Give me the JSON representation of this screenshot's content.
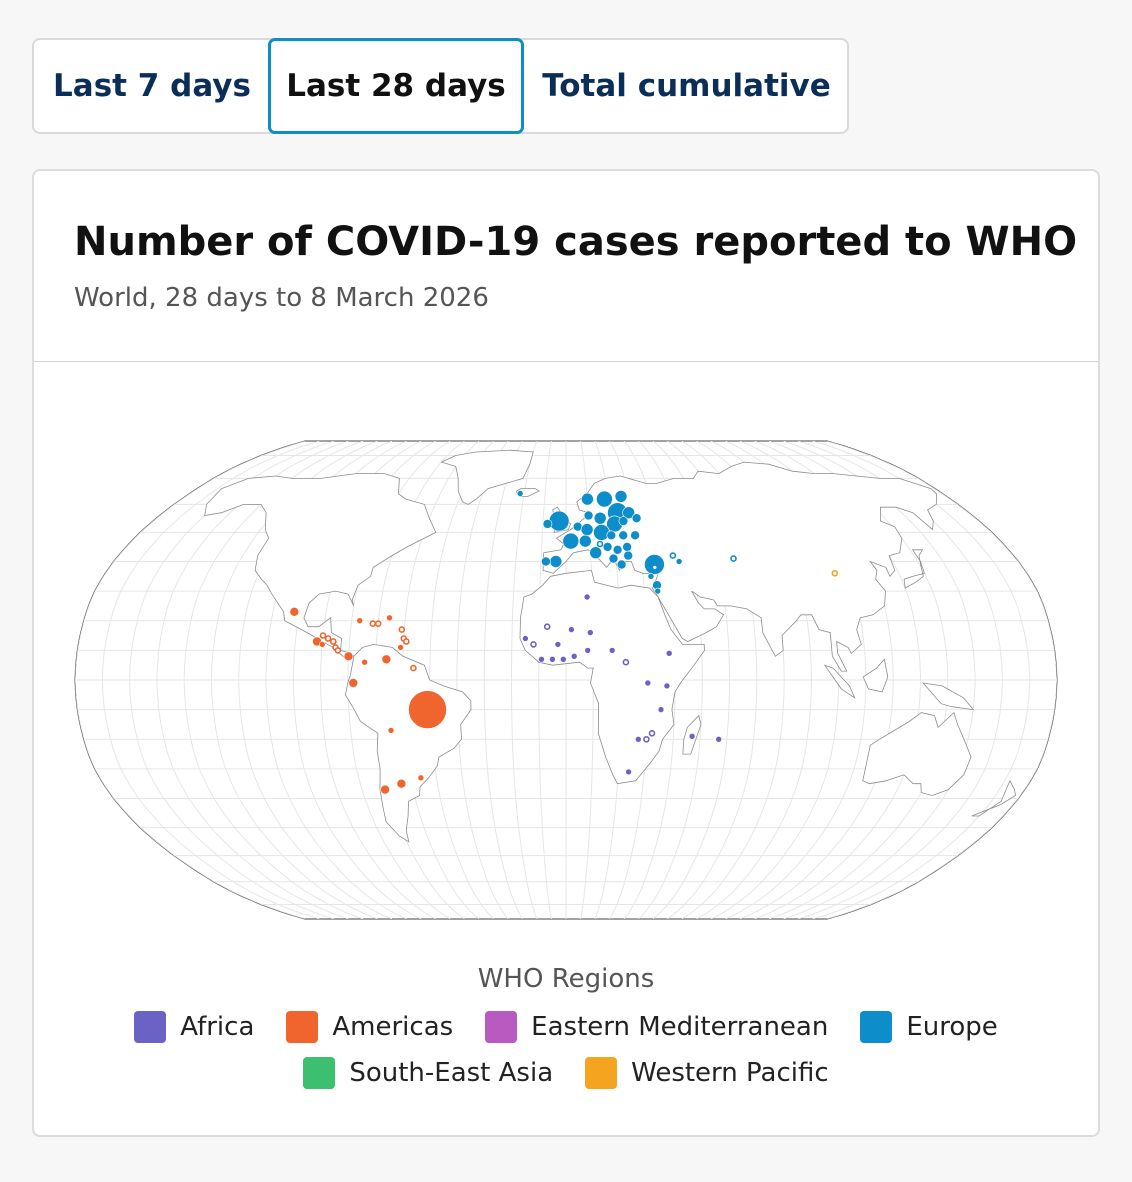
{
  "tabs": [
    {
      "label": "Last 7 days",
      "selected": false
    },
    {
      "label": "Last 28 days",
      "selected": true
    },
    {
      "label": "Total cumulative",
      "selected": false
    }
  ],
  "title": "Number of COVID-19 cases reported to WHO",
  "subtitle": "World, 28 days to 8 March 2026",
  "legend": {
    "title": "WHO Regions",
    "items": [
      {
        "label": "Africa",
        "color": "#6a62c4"
      },
      {
        "label": "Americas",
        "color": "#f0652d"
      },
      {
        "label": "Eastern Mediterranean",
        "color": "#b85bc0"
      },
      {
        "label": "Europe",
        "color": "#0d8dc9"
      },
      {
        "label": "South-East Asia",
        "color": "#3cbf6e"
      },
      {
        "label": "Western Pacific",
        "color": "#f4a41e"
      }
    ]
  },
  "map": {
    "projection": "robinson",
    "markers_note": "proportional circles per country; hollow = low/zero recent",
    "markers": [
      {
        "region": "Europe",
        "lon": -21.9,
        "lat": 64.1,
        "size": 1,
        "filled": true
      },
      {
        "region": "Europe",
        "lon": -3,
        "lat": 54,
        "size": 5,
        "filled": true
      },
      {
        "region": "Europe",
        "lon": 10,
        "lat": 62,
        "size": 3,
        "filled": true
      },
      {
        "region": "Europe",
        "lon": 18,
        "lat": 62,
        "size": 4,
        "filled": true
      },
      {
        "region": "Europe",
        "lon": 26,
        "lat": 63,
        "size": 3,
        "filled": true
      },
      {
        "region": "Europe",
        "lon": 23,
        "lat": 57,
        "size": 5,
        "filled": true
      },
      {
        "region": "Europe",
        "lon": 28,
        "lat": 57,
        "size": 3,
        "filled": true
      },
      {
        "region": "Europe",
        "lon": 10,
        "lat": 56,
        "size": 2,
        "filled": true
      },
      {
        "region": "Europe",
        "lon": 15,
        "lat": 55,
        "size": 3,
        "filled": true
      },
      {
        "region": "Europe",
        "lon": 21,
        "lat": 53,
        "size": 4,
        "filled": true
      },
      {
        "region": "Europe",
        "lon": 25,
        "lat": 54,
        "size": 2,
        "filled": true
      },
      {
        "region": "Europe",
        "lon": 31,
        "lat": 55,
        "size": 2,
        "filled": true
      },
      {
        "region": "Europe",
        "lon": -8,
        "lat": 53,
        "size": 2,
        "filled": true
      },
      {
        "region": "Europe",
        "lon": 5,
        "lat": 52,
        "size": 2,
        "filled": true
      },
      {
        "region": "Europe",
        "lon": 9,
        "lat": 51,
        "size": 3,
        "filled": true
      },
      {
        "region": "Europe",
        "lon": 15,
        "lat": 50,
        "size": 4,
        "filled": true
      },
      {
        "region": "Europe",
        "lon": 19,
        "lat": 49,
        "size": 2,
        "filled": true
      },
      {
        "region": "Europe",
        "lon": 24,
        "lat": 49,
        "size": 2,
        "filled": true
      },
      {
        "region": "Europe",
        "lon": 29,
        "lat": 49,
        "size": 2,
        "filled": true
      },
      {
        "region": "Europe",
        "lon": 2,
        "lat": 47,
        "size": 4,
        "filled": true
      },
      {
        "region": "Europe",
        "lon": 8,
        "lat": 47,
        "size": 3,
        "filled": true
      },
      {
        "region": "Europe",
        "lon": -4,
        "lat": 40,
        "size": 3,
        "filled": true
      },
      {
        "region": "Europe",
        "lon": -8,
        "lat": 40,
        "size": 2,
        "filled": true
      },
      {
        "region": "Europe",
        "lon": 12,
        "lat": 43,
        "size": 3,
        "filled": true
      },
      {
        "region": "Europe",
        "lon": 17,
        "lat": 45,
        "size": 2,
        "filled": true
      },
      {
        "region": "Europe",
        "lon": 21,
        "lat": 44,
        "size": 2,
        "filled": true
      },
      {
        "region": "Europe",
        "lon": 25,
        "lat": 45,
        "size": 2,
        "filled": true
      },
      {
        "region": "Europe",
        "lon": 14,
        "lat": 46,
        "size": 1,
        "filled": false
      },
      {
        "region": "Europe",
        "lon": 19,
        "lat": 41,
        "size": 2,
        "filled": true
      },
      {
        "region": "Europe",
        "lon": 22,
        "lat": 39,
        "size": 2,
        "filled": true
      },
      {
        "region": "Europe",
        "lon": 25,
        "lat": 42,
        "size": 2,
        "filled": true
      },
      {
        "region": "Europe",
        "lon": 35,
        "lat": 39,
        "size": 5,
        "filled": true
      },
      {
        "region": "Europe",
        "lon": 33,
        "lat": 35,
        "size": 1,
        "filled": true
      },
      {
        "region": "Europe",
        "lon": 43,
        "lat": 42,
        "size": 1,
        "filled": false
      },
      {
        "region": "Europe",
        "lon": 45,
        "lat": 40,
        "size": 1,
        "filled": true
      },
      {
        "region": "Europe",
        "lon": 67,
        "lat": 41,
        "size": 1,
        "filled": false
      },
      {
        "region": "Europe",
        "lon": 35,
        "lat": 38,
        "size": 1,
        "filled": false
      },
      {
        "region": "Europe",
        "lon": 35,
        "lat": 32,
        "size": 2,
        "filled": true
      },
      {
        "region": "Europe",
        "lon": 35,
        "lat": 30,
        "size": 1,
        "filled": true
      },
      {
        "region": "Western Pacific",
        "lon": 105,
        "lat": 36,
        "size": 1,
        "filled": false
      },
      {
        "region": "Americas",
        "lon": -102,
        "lat": 23,
        "size": 2,
        "filled": true
      },
      {
        "region": "Americas",
        "lon": -90,
        "lat": 15,
        "size": 1,
        "filled": false
      },
      {
        "region": "Americas",
        "lon": -88,
        "lat": 14,
        "size": 1,
        "filled": false
      },
      {
        "region": "Americas",
        "lon": -86,
        "lat": 13,
        "size": 1,
        "filled": false
      },
      {
        "region": "Americas",
        "lon": -85,
        "lat": 11,
        "size": 1,
        "filled": false
      },
      {
        "region": "Americas",
        "lon": -92,
        "lat": 13,
        "size": 2,
        "filled": true
      },
      {
        "region": "Americas",
        "lon": -90,
        "lat": 12,
        "size": 1,
        "filled": true
      },
      {
        "region": "Americas",
        "lon": -84,
        "lat": 10,
        "size": 1,
        "filled": false
      },
      {
        "region": "Americas",
        "lon": -80,
        "lat": 8,
        "size": 2,
        "filled": true
      },
      {
        "region": "Americas",
        "lon": -77,
        "lat": 20,
        "size": 1,
        "filled": true
      },
      {
        "region": "Americas",
        "lon": -72,
        "lat": 19,
        "size": 1,
        "filled": false
      },
      {
        "region": "Americas",
        "lon": -70,
        "lat": 19,
        "size": 1,
        "filled": false
      },
      {
        "region": "Americas",
        "lon": -66,
        "lat": 21,
        "size": 1,
        "filled": true
      },
      {
        "region": "Americas",
        "lon": -61,
        "lat": 17,
        "size": 1,
        "filled": false
      },
      {
        "region": "Americas",
        "lon": -60,
        "lat": 14,
        "size": 1,
        "filled": false
      },
      {
        "region": "Americas",
        "lon": -59,
        "lat": 13,
        "size": 1,
        "filled": false
      },
      {
        "region": "Americas",
        "lon": -61,
        "lat": 11,
        "size": 1,
        "filled": true
      },
      {
        "region": "Americas",
        "lon": -74,
        "lat": 6,
        "size": 1,
        "filled": true
      },
      {
        "region": "Americas",
        "lon": -66,
        "lat": 7,
        "size": 2,
        "filled": true
      },
      {
        "region": "Americas",
        "lon": -56,
        "lat": 4,
        "size": 1,
        "filled": false
      },
      {
        "region": "Americas",
        "lon": -78,
        "lat": -1,
        "size": 2,
        "filled": true
      },
      {
        "region": "Americas",
        "lon": -51,
        "lat": -10,
        "size": 6,
        "filled": true
      },
      {
        "region": "Americas",
        "lon": -65,
        "lat": -17,
        "size": 1,
        "filled": true
      },
      {
        "region": "Americas",
        "lon": -56,
        "lat": -33,
        "size": 1,
        "filled": true
      },
      {
        "region": "Americas",
        "lon": -64,
        "lat": -35,
        "size": 2,
        "filled": true
      },
      {
        "region": "Americas",
        "lon": -71,
        "lat": -37,
        "size": 2,
        "filled": true
      },
      {
        "region": "Africa",
        "lon": 8,
        "lat": 28,
        "size": 1,
        "filled": true
      },
      {
        "region": "Africa",
        "lon": -7,
        "lat": 18,
        "size": 1,
        "filled": false
      },
      {
        "region": "Africa",
        "lon": 2,
        "lat": 17,
        "size": 1,
        "filled": true
      },
      {
        "region": "Africa",
        "lon": 9,
        "lat": 16,
        "size": 1,
        "filled": true
      },
      {
        "region": "Africa",
        "lon": -15,
        "lat": 14,
        "size": 1,
        "filled": true
      },
      {
        "region": "Africa",
        "lon": -12,
        "lat": 12,
        "size": 1,
        "filled": false
      },
      {
        "region": "Africa",
        "lon": -3,
        "lat": 12,
        "size": 1,
        "filled": true
      },
      {
        "region": "Africa",
        "lon": 8,
        "lat": 10,
        "size": 1,
        "filled": true
      },
      {
        "region": "Africa",
        "lon": -9,
        "lat": 7,
        "size": 1,
        "filled": true
      },
      {
        "region": "Africa",
        "lon": -5,
        "lat": 7,
        "size": 1,
        "filled": true
      },
      {
        "region": "Africa",
        "lon": -1,
        "lat": 7,
        "size": 1,
        "filled": true
      },
      {
        "region": "Africa",
        "lon": 3,
        "lat": 8,
        "size": 1,
        "filled": true
      },
      {
        "region": "Africa",
        "lon": 17,
        "lat": 10,
        "size": 1,
        "filled": true
      },
      {
        "region": "Africa",
        "lon": 22,
        "lat": 6,
        "size": 1,
        "filled": false
      },
      {
        "region": "Africa",
        "lon": 38,
        "lat": 9,
        "size": 1,
        "filled": true
      },
      {
        "region": "Africa",
        "lon": 30,
        "lat": -1,
        "size": 1,
        "filled": true
      },
      {
        "region": "Africa",
        "lon": 37,
        "lat": -2,
        "size": 1,
        "filled": true
      },
      {
        "region": "Africa",
        "lon": 35,
        "lat": -10,
        "size": 1,
        "filled": true
      },
      {
        "region": "Africa",
        "lon": 30,
        "lat": -20,
        "size": 1,
        "filled": false
      },
      {
        "region": "Africa",
        "lon": 32,
        "lat": -18,
        "size": 1,
        "filled": false
      },
      {
        "region": "Africa",
        "lon": 27,
        "lat": -20,
        "size": 1,
        "filled": true
      },
      {
        "region": "Africa",
        "lon": 47,
        "lat": -19,
        "size": 1,
        "filled": true
      },
      {
        "region": "Africa",
        "lon": 57,
        "lat": -20,
        "size": 1,
        "filled": true
      },
      {
        "region": "Africa",
        "lon": 24,
        "lat": -31,
        "size": 1,
        "filled": true
      }
    ]
  }
}
